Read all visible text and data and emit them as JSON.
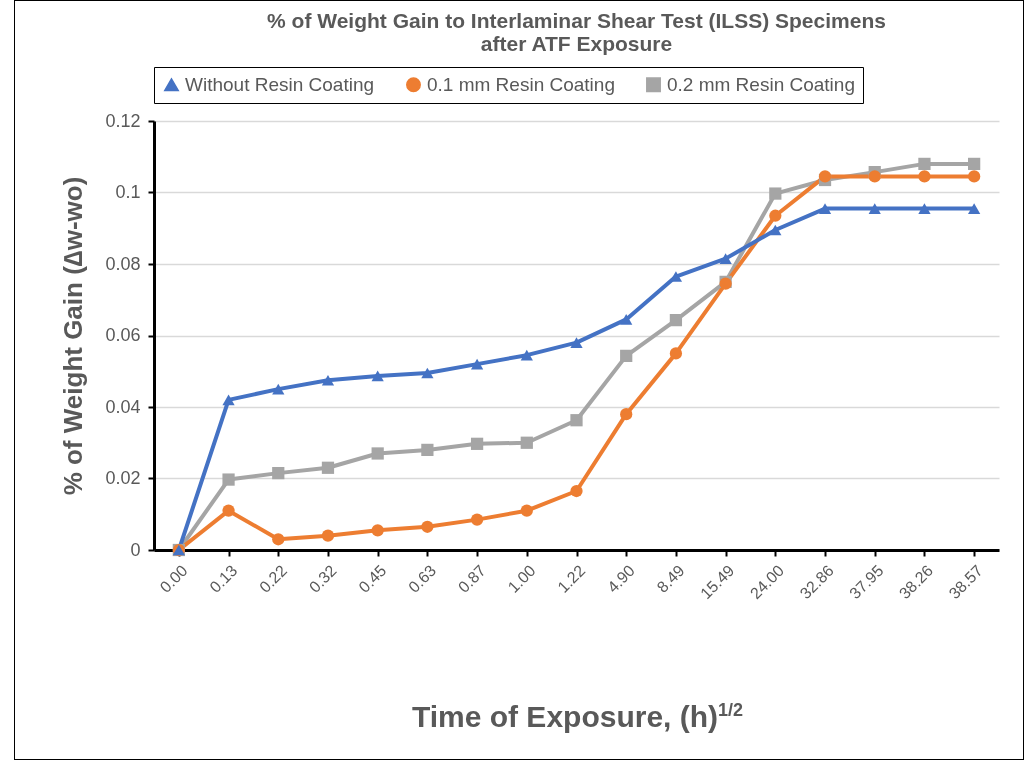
{
  "chart_data": {
    "type": "line",
    "title": [
      "% of Weight Gain to Interlaminar Shear Test (ILSS) Specimens",
      "after ATF Exposure"
    ],
    "xlabel": "Time of  Exposure, (h)$^{1/2}$",
    "ylabel": "% of Weight Gain (∆w-wo)",
    "categories": [
      "0.00",
      "0.13",
      "0.22",
      "0.32",
      "0.45",
      "0.63",
      "0.87",
      "1.00",
      "1.22",
      "4.90",
      "8.49",
      "15.49",
      "24.00",
      "32.86",
      "37.95",
      "38.26",
      "38.57"
    ],
    "series": [
      {
        "name": "Without Resin Coating",
        "color": "#4472c4",
        "marker": "triangle",
        "values": [
          0,
          0.042,
          0.045,
          0.0475,
          0.0487,
          0.0495,
          0.052,
          0.0545,
          0.058,
          0.0645,
          0.0765,
          0.0815,
          0.0895,
          0.0955,
          0.0955,
          0.0955,
          0.0955
        ]
      },
      {
        "name": "0.1 mm Resin Coating",
        "color": "#ed7d31",
        "marker": "circle",
        "values": [
          0,
          0.011,
          0.003,
          0.004,
          0.0055,
          0.0065,
          0.0085,
          0.011,
          0.0165,
          0.038,
          0.055,
          0.0745,
          0.0935,
          0.1045,
          0.1045,
          0.1045,
          0.1045
        ]
      },
      {
        "name": "0.2 mm Resin Coating",
        "color": "#a5a5a5",
        "marker": "square",
        "values": [
          0,
          0.0197,
          0.0215,
          0.023,
          0.027,
          0.028,
          0.0297,
          0.03,
          0.0363,
          0.0543,
          0.0643,
          0.075,
          0.0997,
          0.1035,
          0.1057,
          0.108,
          0.108
        ]
      }
    ],
    "ylim": [
      0,
      0.12
    ],
    "yticks": [
      0,
      0.02,
      0.04,
      0.06,
      0.08,
      0.1,
      0.12
    ],
    "grid": "y",
    "legend": "top"
  }
}
